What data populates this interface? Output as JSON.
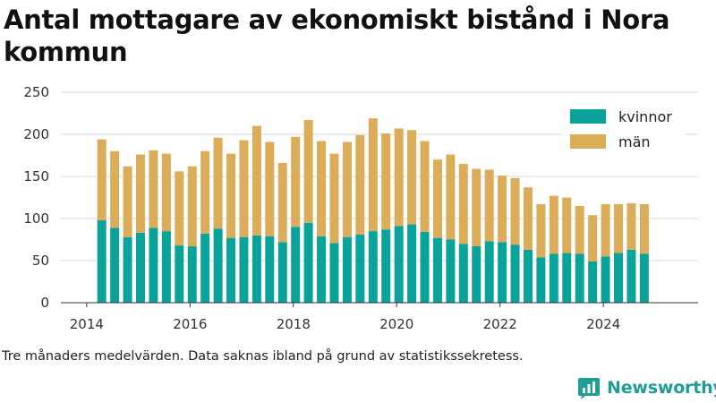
{
  "title": "Antal mottagare av ekonomiskt bistånd i Nora kommun",
  "caption": "Tre månaders medelvärden. Data saknas ibland på grund av statistikssekretess.",
  "brand": {
    "name": "Newsworthy",
    "icon": "bar-chart-logo-icon",
    "color": "#1f9e95"
  },
  "chart_data": {
    "type": "bar",
    "stacked": true,
    "x_type": "date",
    "x_ticks": [
      "2014",
      "2016",
      "2018",
      "2020",
      "2022",
      "2024"
    ],
    "y_ticks": [
      0,
      50,
      100,
      150,
      200,
      250
    ],
    "ylim": [
      0,
      250
    ],
    "xlim": [
      "2013-07",
      "2025-11"
    ],
    "grid": true,
    "legend_position": "top-right",
    "categories": [
      "2014-04",
      "2014-07",
      "2014-10",
      "2015-01",
      "2015-04",
      "2015-07",
      "2015-10",
      "2016-01",
      "2016-04",
      "2016-07",
      "2016-10",
      "2017-01",
      "2017-04",
      "2017-07",
      "2017-10",
      "2018-01",
      "2018-04",
      "2018-07",
      "2018-10",
      "2019-01",
      "2019-04",
      "2019-07",
      "2019-10",
      "2020-01",
      "2020-04",
      "2020-07",
      "2020-10",
      "2021-01",
      "2021-04",
      "2021-07",
      "2021-10",
      "2022-01",
      "2022-04",
      "2022-07",
      "2022-10",
      "2023-01",
      "2023-04",
      "2023-07",
      "2023-10",
      "2024-01",
      "2024-04",
      "2024-07",
      "2024-10"
    ],
    "series": [
      {
        "name": "kvinnor",
        "color": "#0aa39a",
        "values": [
          98,
          89,
          78,
          83,
          89,
          85,
          68,
          67,
          82,
          88,
          77,
          78,
          80,
          79,
          72,
          90,
          95,
          79,
          71,
          78,
          81,
          85,
          87,
          91,
          93,
          84,
          77,
          75,
          70,
          67,
          73,
          72,
          69,
          63,
          54,
          58,
          59,
          58,
          49,
          55,
          59,
          63,
          58
        ]
      },
      {
        "name": "män",
        "color": "#dbac5a",
        "values": [
          96,
          91,
          84,
          93,
          92,
          92,
          88,
          95,
          98,
          108,
          100,
          115,
          130,
          112,
          94,
          107,
          122,
          113,
          106,
          113,
          118,
          134,
          114,
          116,
          112,
          108,
          93,
          101,
          95,
          92,
          85,
          79,
          79,
          74,
          63,
          69,
          66,
          57,
          55,
          62,
          58,
          55,
          59
        ]
      }
    ]
  }
}
